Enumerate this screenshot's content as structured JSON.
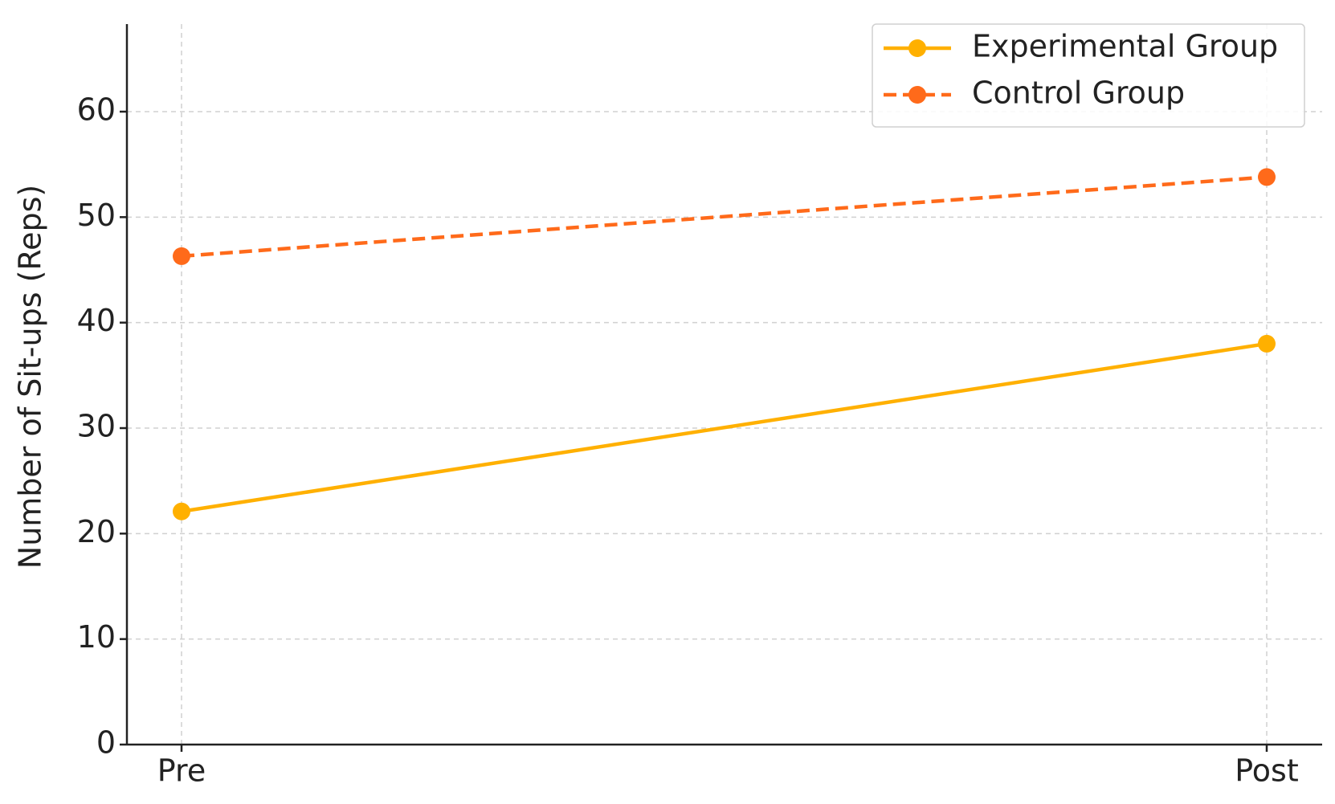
{
  "chart_data": {
    "type": "line",
    "y_label": "Number of Sit-ups (Reps)",
    "categories": [
      "Pre",
      "Post"
    ],
    "series": [
      {
        "name": "Experimental Group",
        "color": "#ffb000",
        "linestyle": "solid",
        "values": [
          22.1,
          38.0
        ]
      },
      {
        "name": "Control Group",
        "color": "#ff6a1a",
        "linestyle": "dashed",
        "values": [
          46.3,
          53.8
        ]
      }
    ],
    "ylim": [
      0,
      68.3
    ],
    "yticks": [
      0,
      10,
      20,
      30,
      40,
      50,
      60
    ],
    "grid": true,
    "legend": "upper right"
  }
}
